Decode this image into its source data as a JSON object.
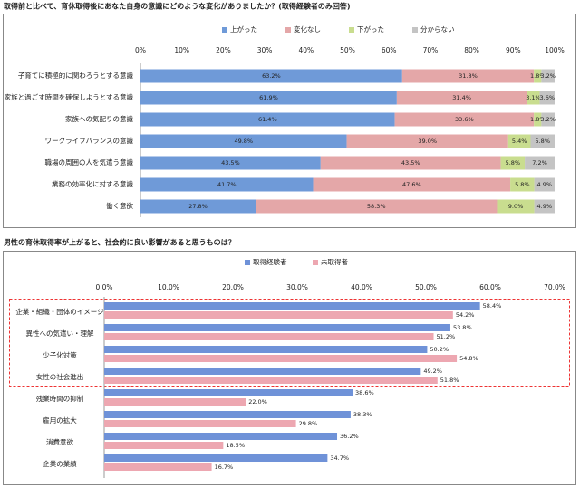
{
  "chart_data": [
    {
      "type": "stacked_bar",
      "title": "取得前と比べて、育休取得後にあなた自身の意識にどのような変化がありましたか？(取得経験者のみ回答)",
      "categories": [
        "子育てに積極的に関わろうとする意識",
        "家族と過ごす時間を確保しようとする意識",
        "家族への気配りの意識",
        "ワークライフバランスの意識",
        "職場の周囲の人を気遣う意識",
        "業務の効率化に対する意識",
        "働く意欲"
      ],
      "series": [
        {
          "name": "上がった",
          "color": "#6f9ad8",
          "values": [
            63.2,
            61.9,
            61.4,
            49.8,
            43.5,
            41.7,
            27.8
          ],
          "value_labels": [
            "63.2%",
            "61.9%",
            "61.4%",
            "49.8%",
            "43.5%",
            "41.7%",
            "27.8%"
          ]
        },
        {
          "name": "変化なし",
          "color": "#e4a7a8",
          "values": [
            31.8,
            31.4,
            33.6,
            39.0,
            43.5,
            47.6,
            58.3
          ],
          "value_labels": [
            "31.8%",
            "31.4%",
            "33.6%",
            "39.0%",
            "43.5%",
            "47.6%",
            "58.3%"
          ]
        },
        {
          "name": "下がった",
          "color": "#c9dd8f",
          "values": [
            1.8,
            3.1,
            1.8,
            5.4,
            5.8,
            5.8,
            9.0
          ],
          "value_labels": [
            "1.8%",
            "3.1%",
            "1.8%",
            "5.4%",
            "5.8%",
            "5.8%",
            "9.0%"
          ]
        },
        {
          "name": "分からない",
          "color": "#c4c4c4",
          "values": [
            3.2,
            3.6,
            3.2,
            5.8,
            7.2,
            4.9,
            4.9
          ],
          "value_labels": [
            "3.2%",
            "3.6%",
            "3.2%",
            "5.8%",
            "7.2%",
            "4.9%",
            "4.9%"
          ]
        }
      ],
      "xlim": [
        0,
        100
      ],
      "xticks": [
        {
          "value": 0,
          "label": "0%"
        },
        {
          "value": 10,
          "label": "10%"
        },
        {
          "value": 20,
          "label": "20%"
        },
        {
          "value": 30,
          "label": "30%"
        },
        {
          "value": 40,
          "label": "40%"
        },
        {
          "value": 50,
          "label": "50%"
        },
        {
          "value": 60,
          "label": "60%"
        },
        {
          "value": 70,
          "label": "70%"
        },
        {
          "value": 80,
          "label": "80%"
        },
        {
          "value": 90,
          "label": "90%"
        },
        {
          "value": 100,
          "label": "100%"
        }
      ]
    },
    {
      "type": "bar",
      "title": "男性の育休取得率が上がると、社会的に良い影響があると思うものは？",
      "categories": [
        "企業・組織・団体のイメージ",
        "異性への気遣い・理解",
        "少子化対策",
        "女性の社会進出",
        "残業時間の抑制",
        "雇用の拡大",
        "消費意欲",
        "企業の業績"
      ],
      "series": [
        {
          "name": "取得経験者",
          "color": "#6f92d8",
          "values": [
            58.4,
            53.8,
            50.2,
            49.2,
            38.6,
            38.3,
            36.2,
            34.7
          ],
          "value_labels": [
            "58.4%",
            "53.8%",
            "50.2%",
            "49.2%",
            "38.6%",
            "38.3%",
            "36.2%",
            "34.7%"
          ]
        },
        {
          "name": "未取得者",
          "color": "#eda7b1",
          "values": [
            54.2,
            51.2,
            54.8,
            51.8,
            22.0,
            29.8,
            18.5,
            16.7
          ],
          "value_labels": [
            "54.2%",
            "51.2%",
            "54.8%",
            "51.8%",
            "22.0%",
            "29.8%",
            "18.5%",
            "16.7%"
          ]
        }
      ],
      "xlim": [
        0,
        70
      ],
      "xticks": [
        {
          "value": 0,
          "label": "0.0%"
        },
        {
          "value": 10,
          "label": "10.0%"
        },
        {
          "value": 20,
          "label": "20.0%"
        },
        {
          "value": 30,
          "label": "30.0%"
        },
        {
          "value": 40,
          "label": "40.0%"
        },
        {
          "value": 50,
          "label": "50.0%"
        },
        {
          "value": 60,
          "label": "60.0%"
        },
        {
          "value": 70,
          "label": "70.0%"
        }
      ]
    }
  ]
}
